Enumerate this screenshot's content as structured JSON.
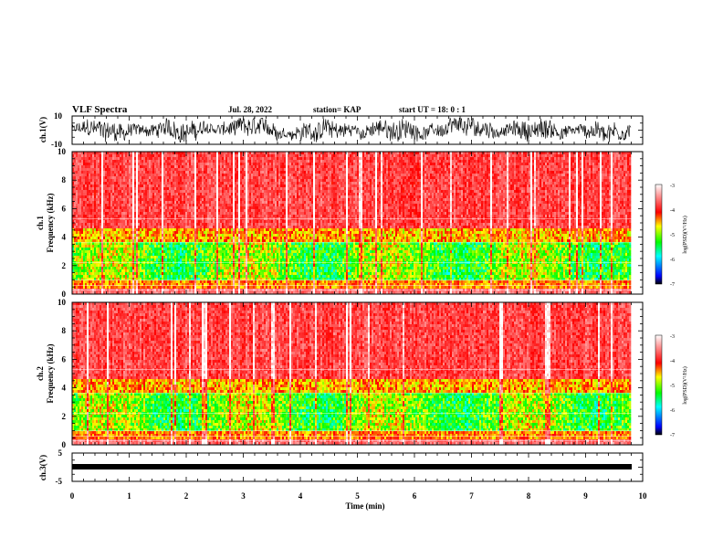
{
  "header": {
    "title": "VLF Spectra",
    "date": "Jul. 28, 2022",
    "station": "station= KAP",
    "start_ut": "start  UT =   18: 0  : 1"
  },
  "chart_data": [
    {
      "type": "line",
      "panel": "ch1-waveform",
      "ylabel": "ch.1(V)",
      "ylim": [
        -10,
        10
      ],
      "yticks": [
        "10",
        "-10"
      ],
      "xlim": [
        0,
        10
      ],
      "note_values": "dense noise trace spanning roughly -8 to 8 V across 0 to 9.8 min"
    },
    {
      "type": "heatmap",
      "panel": "ch1-spectrogram",
      "ylabel_top": "ch.1",
      "ylabel": "Frequency (kHz)",
      "ylim": [
        0,
        10
      ],
      "yticks": [
        "0",
        "2",
        "4",
        "6",
        "8",
        "10"
      ],
      "xlim": [
        0,
        10
      ],
      "data_end_min": 9.8,
      "colorbar": {
        "label": "log(PSD)(V²/Hz)",
        "range": [
          -7,
          -3
        ],
        "ticks": [
          "-3",
          "-4",
          "-5",
          "-6",
          "-7"
        ],
        "colors": [
          "#000000",
          "#0000ff",
          "#00ffff",
          "#00ff00",
          "#ffff00",
          "#ff0000",
          "#ffffff"
        ]
      }
    },
    {
      "type": "heatmap",
      "panel": "ch2-spectrogram",
      "ylabel_top": "ch.2",
      "ylabel": "Frequency (kHz)",
      "ylim": [
        0,
        10
      ],
      "yticks": [
        "0",
        "2",
        "4",
        "6",
        "8",
        "10"
      ],
      "xlim": [
        0,
        10
      ],
      "data_end_min": 9.8,
      "colorbar": {
        "label": "log(PSD)(V²/Hz)",
        "range": [
          -7,
          -3
        ],
        "ticks": [
          "-3",
          "-4",
          "-5",
          "-6",
          "-7"
        ]
      }
    },
    {
      "type": "line",
      "panel": "ch3-waveform",
      "ylabel": "ch.3(V)",
      "ylim": [
        -5,
        5
      ],
      "yticks": [
        "5",
        "-5"
      ],
      "xlim": [
        0,
        10
      ],
      "note_values": "nearly flat band around -1.5 V from 0 to 9.8 min"
    }
  ],
  "x_axis": {
    "label": "Time  (min)",
    "ticks": [
      "0",
      "1",
      "2",
      "3",
      "4",
      "5",
      "6",
      "7",
      "8",
      "9",
      "10"
    ]
  }
}
